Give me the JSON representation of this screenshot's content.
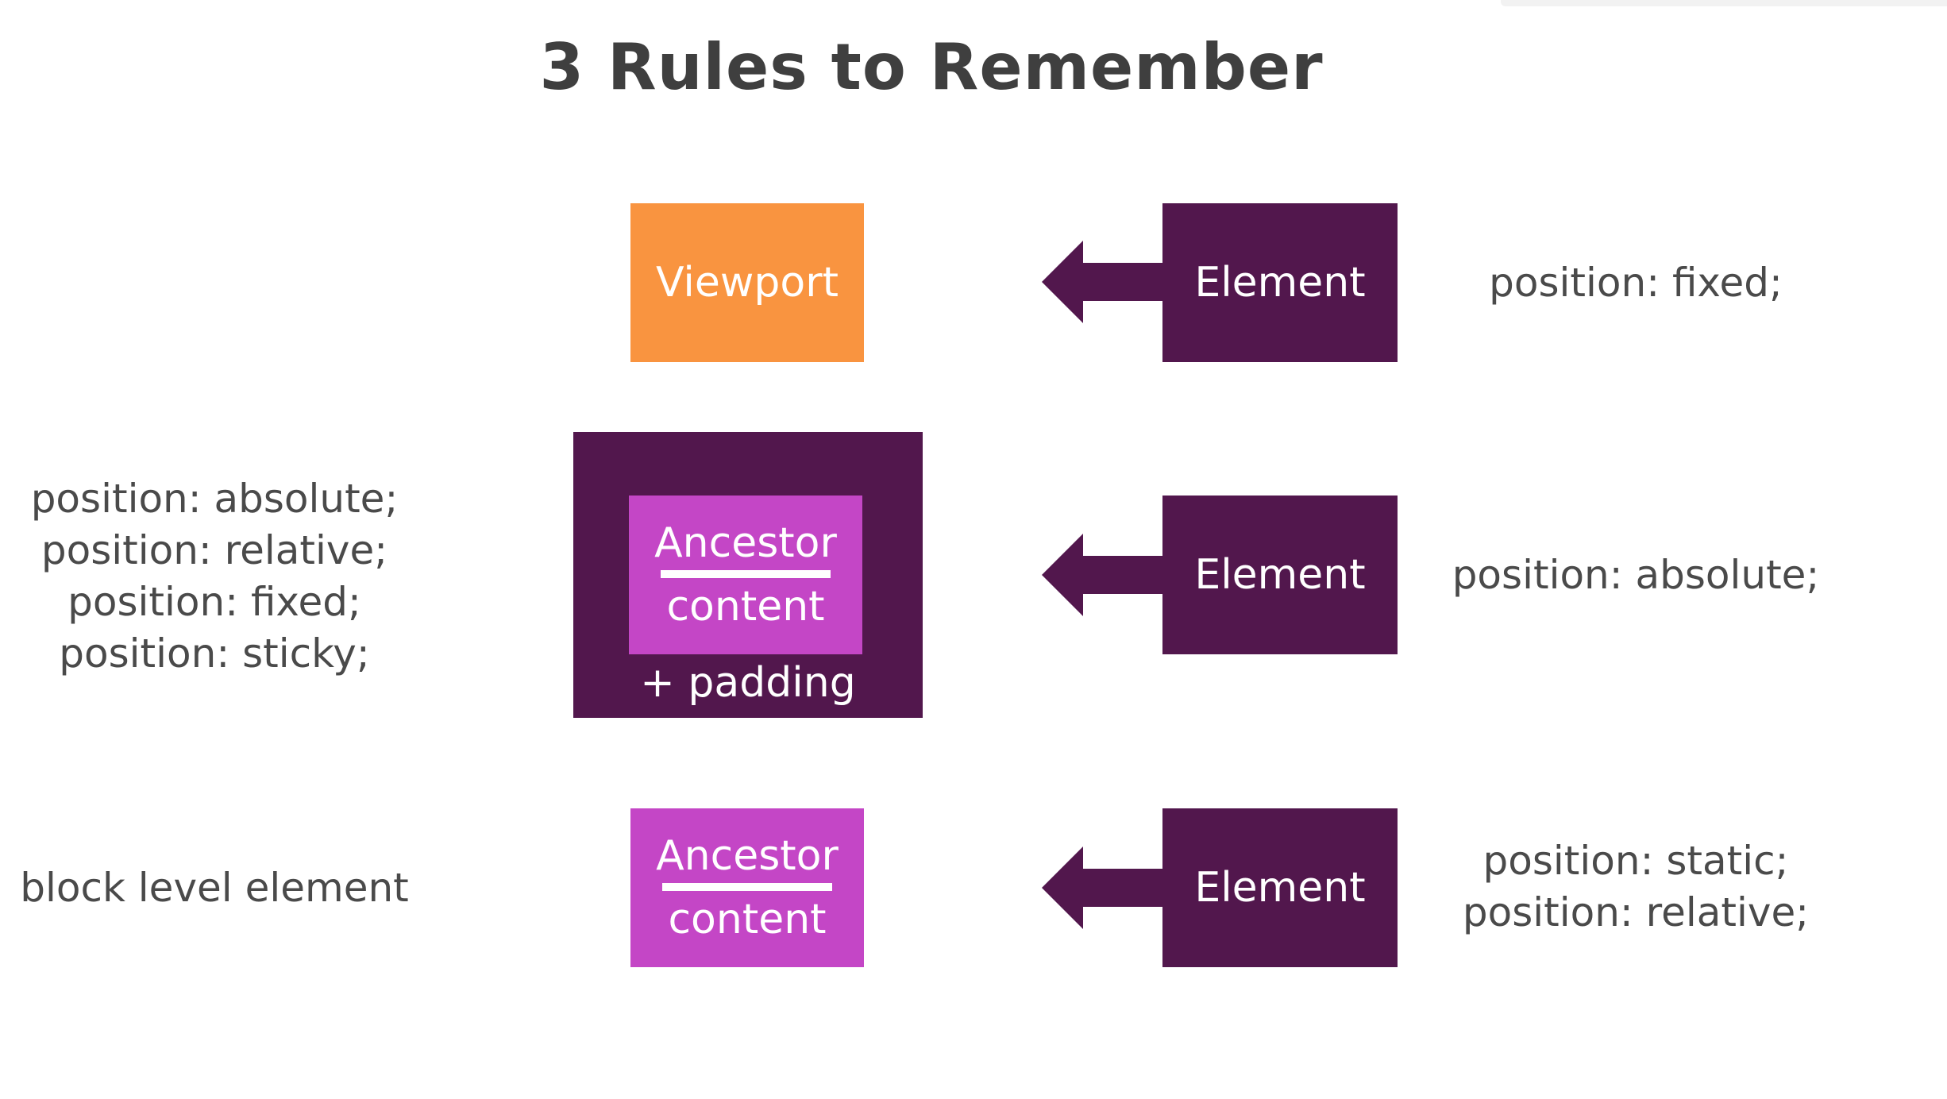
{
  "title": "3 Rules to Remember",
  "colors": {
    "viewport_orange": "#f99440",
    "element_purple": "#52174d",
    "ancestor_magenta": "#c446c6",
    "text_gray": "#4a4a4a"
  },
  "rows": [
    {
      "target": {
        "label": "Viewport"
      },
      "element": {
        "label": "Element"
      },
      "right_text": [
        "position: fixed;"
      ],
      "arrow_icon": "arrow-left-icon"
    },
    {
      "left_text": [
        "position: absolute;",
        "position: relative;",
        "position: fixed;",
        "position: sticky;"
      ],
      "target": {
        "top_word": "Ancestor",
        "bottom_word": "content",
        "padding_label": "+ padding"
      },
      "element": {
        "label": "Element"
      },
      "right_text": [
        "position: absolute;"
      ],
      "arrow_icon": "arrow-left-icon"
    },
    {
      "left_text": [
        "block level element"
      ],
      "target": {
        "top_word": "Ancestor",
        "bottom_word": "content"
      },
      "element": {
        "label": "Element"
      },
      "right_text": [
        "position: static;",
        "position: relative;"
      ],
      "arrow_icon": "arrow-left-icon"
    }
  ]
}
